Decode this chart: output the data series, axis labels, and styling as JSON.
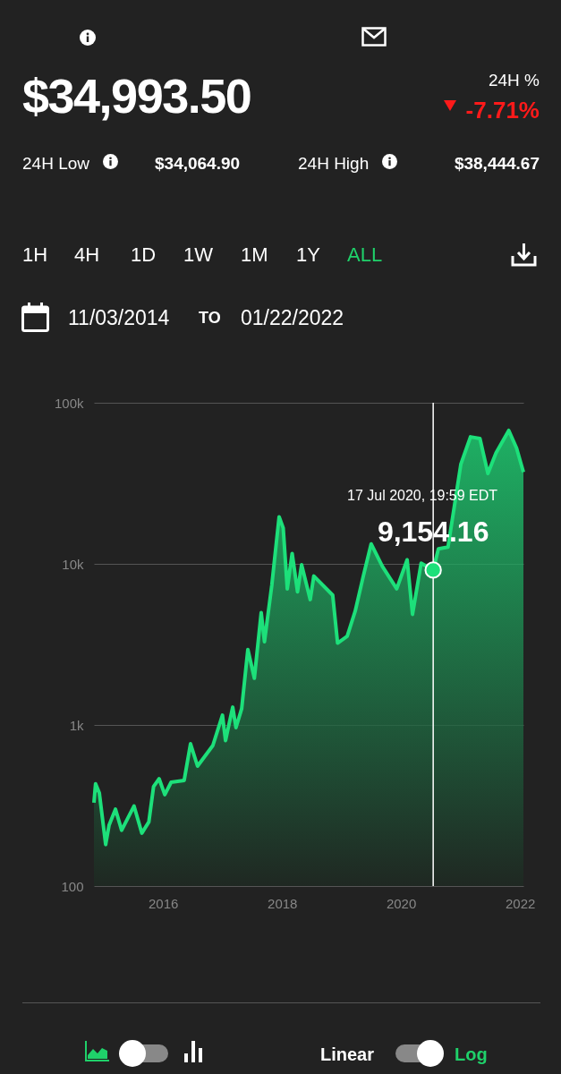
{
  "chart_data": {
    "type": "area",
    "x": [
      "2014-11-03",
      "2014-11-13",
      "2014-12-06",
      "2015-01-14",
      "2015-02-04",
      "2015-03-15",
      "2015-04-22",
      "2015-07-07",
      "2015-08-24",
      "2015-10-06",
      "2015-11-04",
      "2015-12-08",
      "2016-01-12",
      "2016-02-20",
      "2016-05-10",
      "2016-06-18",
      "2016-07-31",
      "2016-11-02",
      "2016-12-31",
      "2017-01-19",
      "2017-03-04",
      "2017-03-24",
      "2017-04-28",
      "2017-06-05",
      "2017-07-15",
      "2017-08-26",
      "2017-09-15",
      "2017-10-30",
      "2017-12-14",
      "2018-01-08",
      "2018-02-02",
      "2018-03-04",
      "2018-04-06",
      "2018-05-01",
      "2018-06-23",
      "2018-07-15",
      "2018-11-08",
      "2018-12-08",
      "2019-02-05",
      "2019-03-26",
      "2019-05-15",
      "2019-07-02",
      "2019-09-09",
      "2019-12-06",
      "2020-02-08",
      "2020-03-12",
      "2020-05-04",
      "2020-07-17",
      "2020-08-18",
      "2020-10-16",
      "2021-01-03",
      "2021-03-03",
      "2021-04-30",
      "2021-06-18",
      "2021-08-07",
      "2021-10-24",
      "2021-12-11",
      "2022-01-22"
    ],
    "series": [
      {
        "color": "#1de07a",
        "values": [
          329,
          431,
          378,
          181,
          239,
          300,
          222,
          314,
          213,
          250,
          414,
          464,
          369,
          441,
          453,
          764,
          555,
          745,
          1150,
          800,
          1290,
          962,
          1260,
          2940,
          1950,
          4980,
          3290,
          7360,
          19600,
          16700,
          7000,
          11600,
          6710,
          9860,
          6000,
          8400,
          6390,
          3220,
          3550,
          5080,
          8400,
          13300,
          9630,
          7000,
          10600,
          4860,
          10100,
          9154.16,
          12400,
          12700,
          41600,
          61400,
          60000,
          36400,
          48900,
          67300,
          52200,
          37100
        ]
      }
    ],
    "xlim": [
      "2014-11-03",
      "2022-01-22"
    ],
    "xticks": [
      "2016",
      "2018",
      "2020",
      "2022"
    ],
    "ylim": [
      100,
      100000
    ],
    "yticks": [
      {
        "value": 100,
        "label": "100"
      },
      {
        "value": 1000,
        "label": "1k"
      },
      {
        "value": 10000,
        "label": "10k"
      },
      {
        "value": 100000,
        "label": "100k"
      }
    ],
    "log": true,
    "grid": "y",
    "marker": "none",
    "ref_lines": [
      {
        "axis": "x",
        "value": "2020-07-17",
        "color": "#ffffff"
      }
    ],
    "annotations": [
      "$34,993.50",
      "24H %",
      "-7.71%",
      "24H Low",
      "$34,064.90",
      "24H High",
      "$38,444.67",
      "1H",
      "4H",
      "1D",
      "1W",
      "1M",
      "1Y",
      "ALL",
      "11/03/2014",
      "TO",
      "01/22/2022",
      "Linear",
      "Log",
      "17 Jul 2020, 19:59 EDT",
      {
        "text": "9,154.16",
        "x": "2020-07-17",
        "y": 9154.16
      }
    ]
  }
}
